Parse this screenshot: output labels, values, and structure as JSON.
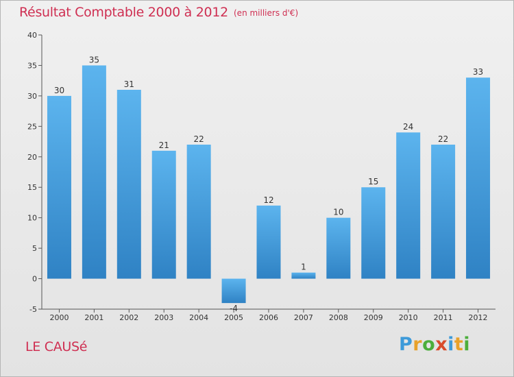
{
  "chart_data": {
    "type": "bar",
    "title": "Résultat Comptable 2000 à 2012",
    "subtitle": "(en milliers d'€)",
    "categories": [
      "2000",
      "2001",
      "2002",
      "2003",
      "2004",
      "2005",
      "2006",
      "2007",
      "2008",
      "2009",
      "2010",
      "2011",
      "2012"
    ],
    "values": [
      30,
      35,
      31,
      21,
      22,
      -4,
      12,
      1,
      10,
      15,
      24,
      22,
      33
    ],
    "ylim": [
      -5,
      40
    ],
    "yticks": [
      -5,
      0,
      5,
      10,
      15,
      20,
      25,
      30,
      35,
      40
    ],
    "xlabel": "",
    "ylabel": "",
    "grid": false,
    "bar_color": "#3d9ad9",
    "legend": "none"
  },
  "footer": {
    "commune": "LE CAUSé",
    "logo_letters": [
      "P",
      "r",
      "o",
      "x",
      "i",
      "t",
      "i"
    ],
    "logo_colors": [
      "#3d9ad9",
      "#e8a12a",
      "#4cae3c",
      "#d94b2b",
      "#3d9ad9",
      "#e8a12a",
      "#4cae3c"
    ]
  },
  "colors": {
    "title": "#cf2f52",
    "axis": "#555555"
  }
}
